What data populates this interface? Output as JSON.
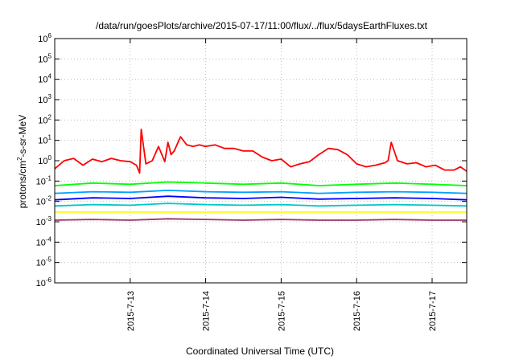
{
  "chart_data": {
    "type": "line",
    "title": "/data/run/goesPlots/archive/2015-07-17/11:00/flux/../flux/5daysEarthFluxes.txt",
    "xlabel": "Coordinated Universal Time (UTC)",
    "ylabel": {
      "main": "protons/cm",
      "exp": "2",
      "rest": "-s-sr-MeV"
    },
    "yscale": "log",
    "ylim": [
      1e-06,
      1000000.0
    ],
    "yticks": [
      {
        "base": "10",
        "exp": "-6",
        "value": 1e-06
      },
      {
        "base": "10",
        "exp": "-5",
        "value": 1e-05
      },
      {
        "base": "10",
        "exp": "-4",
        "value": 0.0001
      },
      {
        "base": "10",
        "exp": "-3",
        "value": 0.001
      },
      {
        "base": "10",
        "exp": "-2",
        "value": 0.01
      },
      {
        "base": "10",
        "exp": "-1",
        "value": 0.1
      },
      {
        "base": "10",
        "exp": "0",
        "value": 1
      },
      {
        "base": "10",
        "exp": "1",
        "value": 10
      },
      {
        "base": "10",
        "exp": "2",
        "value": 100
      },
      {
        "base": "10",
        "exp": "3",
        "value": 1000
      },
      {
        "base": "10",
        "exp": "4",
        "value": 10000
      },
      {
        "base": "10",
        "exp": "5",
        "value": 100000
      },
      {
        "base": "10",
        "exp": "6",
        "value": 1000000
      }
    ],
    "xlim": [
      "2015-07-12 00:00",
      "2015-07-17 11:00"
    ],
    "xticks": [
      {
        "label": "2015-7-13",
        "value": "2015-07-13"
      },
      {
        "label": "2015-7-14",
        "value": "2015-07-14"
      },
      {
        "label": "2015-7-15",
        "value": "2015-07-15"
      },
      {
        "label": "2015-7-16",
        "value": "2015-07-16"
      },
      {
        "label": "2015-7-17",
        "value": "2015-07-17"
      }
    ],
    "grid": true,
    "series": [
      {
        "color": "#ff0000",
        "x": [
          "2015-07-12 00:00",
          "2015-07-12 03:00",
          "2015-07-12 06:00",
          "2015-07-12 09:00",
          "2015-07-12 12:00",
          "2015-07-12 15:00",
          "2015-07-12 18:00",
          "2015-07-12 21:00",
          "2015-07-13 00:00",
          "2015-07-13 02:00",
          "2015-07-13 03:00",
          "2015-07-13 03:30",
          "2015-07-13 05:00",
          "2015-07-13 07:00",
          "2015-07-13 09:00",
          "2015-07-13 11:00",
          "2015-07-13 12:00",
          "2015-07-13 13:00",
          "2015-07-13 14:00",
          "2015-07-13 16:00",
          "2015-07-13 18:00",
          "2015-07-13 20:00",
          "2015-07-13 22:00",
          "2015-07-14 00:00",
          "2015-07-14 03:00",
          "2015-07-14 06:00",
          "2015-07-14 09:00",
          "2015-07-14 12:00",
          "2015-07-14 15:00",
          "2015-07-14 18:00",
          "2015-07-14 21:00",
          "2015-07-15 00:00",
          "2015-07-15 03:00",
          "2015-07-15 06:00",
          "2015-07-15 09:00",
          "2015-07-15 12:00",
          "2015-07-15 15:00",
          "2015-07-15 18:00",
          "2015-07-15 21:00",
          "2015-07-16 00:00",
          "2015-07-16 03:00",
          "2015-07-16 06:00",
          "2015-07-16 09:00",
          "2015-07-16 10:00",
          "2015-07-16 11:00",
          "2015-07-16 13:00",
          "2015-07-16 16:00",
          "2015-07-16 19:00",
          "2015-07-16 22:00",
          "2015-07-17 01:00",
          "2015-07-17 04:00",
          "2015-07-17 07:00",
          "2015-07-17 09:00",
          "2015-07-17 11:00"
        ],
        "y": [
          0.4,
          1.0,
          1.3,
          0.6,
          1.2,
          0.9,
          1.3,
          1.0,
          0.9,
          0.6,
          0.25,
          35,
          0.7,
          1.0,
          5.0,
          0.9,
          8.0,
          2.0,
          3.0,
          15,
          6.0,
          5.0,
          6.0,
          5.0,
          6.0,
          4.0,
          4.0,
          3.0,
          3.0,
          1.5,
          1.0,
          1.2,
          0.5,
          0.7,
          0.9,
          2.0,
          4.0,
          3.5,
          2.0,
          0.7,
          0.5,
          0.6,
          0.8,
          1.0,
          8.0,
          1.0,
          0.7,
          0.8,
          0.5,
          0.6,
          0.35,
          0.35,
          0.5,
          0.3
        ]
      },
      {
        "color": "#00ff00",
        "x": [
          "2015-07-12 00:00",
          "2015-07-12 12:00",
          "2015-07-13 00:00",
          "2015-07-13 12:00",
          "2015-07-14 00:00",
          "2015-07-14 12:00",
          "2015-07-15 00:00",
          "2015-07-15 12:00",
          "2015-07-16 00:00",
          "2015-07-16 12:00",
          "2015-07-17 00:00",
          "2015-07-17 11:00"
        ],
        "y": [
          0.06,
          0.08,
          0.07,
          0.09,
          0.08,
          0.07,
          0.08,
          0.06,
          0.07,
          0.08,
          0.07,
          0.06
        ]
      },
      {
        "color": "#00a0ff",
        "x": [
          "2015-07-12 00:00",
          "2015-07-12 12:00",
          "2015-07-13 00:00",
          "2015-07-13 12:00",
          "2015-07-14 00:00",
          "2015-07-14 12:00",
          "2015-07-15 00:00",
          "2015-07-15 12:00",
          "2015-07-16 00:00",
          "2015-07-16 12:00",
          "2015-07-17 00:00",
          "2015-07-17 11:00"
        ],
        "y": [
          0.025,
          0.03,
          0.028,
          0.035,
          0.03,
          0.028,
          0.03,
          0.025,
          0.028,
          0.03,
          0.028,
          0.025
        ]
      },
      {
        "color": "#0000ff",
        "x": [
          "2015-07-12 00:00",
          "2015-07-12 12:00",
          "2015-07-13 00:00",
          "2015-07-13 12:00",
          "2015-07-14 00:00",
          "2015-07-14 12:00",
          "2015-07-15 00:00",
          "2015-07-15 12:00",
          "2015-07-16 00:00",
          "2015-07-16 12:00",
          "2015-07-17 00:00",
          "2015-07-17 11:00"
        ],
        "y": [
          0.012,
          0.015,
          0.014,
          0.018,
          0.015,
          0.014,
          0.016,
          0.013,
          0.014,
          0.015,
          0.014,
          0.012
        ]
      },
      {
        "color": "#00c8c8",
        "x": [
          "2015-07-12 00:00",
          "2015-07-12 12:00",
          "2015-07-13 00:00",
          "2015-07-13 12:00",
          "2015-07-14 00:00",
          "2015-07-14 12:00",
          "2015-07-15 00:00",
          "2015-07-15 12:00",
          "2015-07-16 00:00",
          "2015-07-16 12:00",
          "2015-07-17 00:00",
          "2015-07-17 11:00"
        ],
        "y": [
          0.006,
          0.007,
          0.0065,
          0.008,
          0.007,
          0.0065,
          0.007,
          0.006,
          0.0065,
          0.007,
          0.0065,
          0.006
        ]
      },
      {
        "color": "#ffff00",
        "x": [
          "2015-07-12 00:00",
          "2015-07-12 12:00",
          "2015-07-13 00:00",
          "2015-07-13 12:00",
          "2015-07-14 00:00",
          "2015-07-14 12:00",
          "2015-07-15 00:00",
          "2015-07-15 12:00",
          "2015-07-16 00:00",
          "2015-07-16 12:00",
          "2015-07-17 00:00",
          "2015-07-17 11:00"
        ],
        "y": [
          0.003,
          0.003,
          0.003,
          0.003,
          0.003,
          0.003,
          0.003,
          0.003,
          0.003,
          0.003,
          0.003,
          0.003
        ]
      },
      {
        "color": "#993366",
        "x": [
          "2015-07-12 00:00",
          "2015-07-12 12:00",
          "2015-07-13 00:00",
          "2015-07-13 12:00",
          "2015-07-14 00:00",
          "2015-07-14 12:00",
          "2015-07-15 00:00",
          "2015-07-15 12:00",
          "2015-07-16 00:00",
          "2015-07-16 12:00",
          "2015-07-17 00:00",
          "2015-07-17 11:00"
        ],
        "y": [
          0.0012,
          0.0013,
          0.0012,
          0.0014,
          0.0013,
          0.0012,
          0.0013,
          0.0012,
          0.0012,
          0.0013,
          0.0012,
          0.0012
        ]
      }
    ]
  }
}
